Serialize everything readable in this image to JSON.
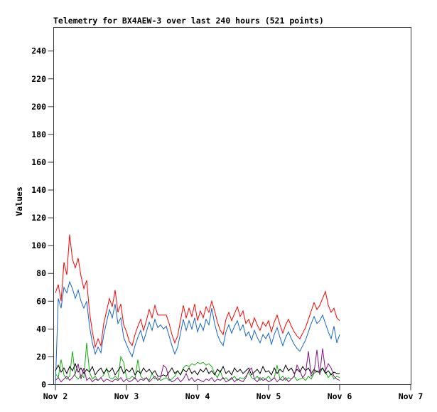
{
  "window": {
    "background": "#ffffff",
    "border_color": "#333333",
    "text_color": "#000000"
  },
  "chart_data": {
    "type": "line",
    "title": "Telemetry for BX4AEW-3 over last 240 hours (521 points)",
    "ylabel": "Values",
    "xlabel": "",
    "station": "BX4AEW-3",
    "window_hours": 240,
    "points_count": 521,
    "grid": false,
    "legend_position": "none",
    "ylim": [
      0,
      257
    ],
    "y_ticks": [
      0,
      20,
      40,
      60,
      80,
      100,
      120,
      140,
      160,
      180,
      200,
      220,
      240
    ],
    "x_ticks": [
      {
        "day": 0,
        "label": "Nov 2"
      },
      {
        "day": 1,
        "label": "Nov 3"
      },
      {
        "day": 2,
        "label": "Nov 4"
      },
      {
        "day": 3,
        "label": "Nov 5"
      },
      {
        "day": 4,
        "label": "Nov 6"
      },
      {
        "day": 5,
        "label": "Nov 7"
      }
    ],
    "x_days_range": [
      0,
      5
    ],
    "data_days_span": [
      0,
      4
    ],
    "series": [
      {
        "name": "series-red",
        "color": "#ff0000",
        "x_start": 0,
        "x_step": 0.04,
        "values": [
          66,
          72,
          60,
          88,
          79,
          108,
          90,
          84,
          91,
          78,
          69,
          75,
          52,
          38,
          27,
          33,
          28,
          44,
          53,
          62,
          56,
          68,
          52,
          58,
          43,
          38,
          31,
          28,
          36,
          42,
          47,
          39,
          46,
          54,
          48,
          57,
          50,
          50,
          50,
          50,
          44,
          36,
          30,
          35,
          46,
          57,
          48,
          55,
          49,
          58,
          46,
          53,
          48,
          56,
          52,
          60,
          53,
          45,
          39,
          36,
          47,
          52,
          46,
          51,
          56,
          49,
          53,
          44,
          47,
          41,
          48,
          43,
          39,
          45,
          42,
          46,
          38,
          45,
          50,
          43,
          37,
          43,
          47,
          42,
          38,
          35,
          33,
          37,
          41,
          47,
          53,
          59,
          54,
          57,
          62,
          67,
          57,
          52,
          55,
          48,
          46
        ]
      },
      {
        "name": "series-blue",
        "color": "#1565c8",
        "x_start": 0,
        "x_step": 0.04,
        "values": [
          0,
          62,
          55,
          70,
          66,
          74,
          69,
          62,
          68,
          60,
          55,
          60,
          42,
          30,
          22,
          27,
          23,
          36,
          45,
          54,
          48,
          58,
          44,
          48,
          34,
          29,
          24,
          20,
          28,
          34,
          39,
          31,
          38,
          45,
          39,
          47,
          41,
          43,
          40,
          42,
          35,
          28,
          22,
          27,
          37,
          47,
          39,
          46,
          40,
          48,
          38,
          44,
          39,
          47,
          43,
          55,
          44,
          36,
          31,
          28,
          38,
          43,
          37,
          42,
          46,
          39,
          43,
          35,
          38,
          32,
          39,
          34,
          30,
          36,
          33,
          37,
          29,
          36,
          41,
          34,
          28,
          34,
          38,
          33,
          29,
          26,
          24,
          28,
          32,
          38,
          44,
          49,
          44,
          46,
          50,
          44,
          38,
          33,
          42,
          30,
          36
        ]
      },
      {
        "name": "series-green",
        "color": "#12ad12",
        "x_start": 0,
        "x_step": 0.04,
        "values": [
          8,
          5,
          18,
          7,
          4,
          6,
          24,
          6,
          4,
          7,
          5,
          30,
          9,
          4,
          6,
          3,
          5,
          7,
          12,
          5,
          4,
          6,
          4,
          20,
          16,
          5,
          4,
          6,
          4,
          18,
          6,
          4,
          5,
          3,
          8,
          4,
          5,
          3,
          4,
          5,
          3,
          4,
          6,
          10,
          7,
          12,
          14,
          13,
          15,
          14,
          16,
          15,
          16,
          14,
          15,
          13,
          8,
          5,
          10,
          4,
          5,
          3,
          4,
          6,
          3,
          5,
          4,
          6,
          9,
          5,
          4,
          6,
          3,
          5,
          4,
          6,
          3,
          5,
          14,
          4,
          6,
          3,
          5,
          4,
          6,
          3,
          4,
          5,
          3,
          6,
          4,
          8,
          10,
          8,
          12,
          9,
          5,
          8,
          4,
          6,
          5
        ]
      },
      {
        "name": "series-black",
        "color": "#000000",
        "x_start": 0,
        "x_step": 0.04,
        "values": [
          10,
          14,
          9,
          12,
          8,
          13,
          10,
          15,
          9,
          12,
          8,
          11,
          9,
          13,
          7,
          10,
          12,
          8,
          11,
          9,
          12,
          7,
          10,
          13,
          8,
          11,
          9,
          12,
          7,
          10,
          8,
          12,
          9,
          11,
          8,
          10,
          6,
          6,
          7,
          6,
          9,
          12,
          8,
          10,
          7,
          11,
          9,
          12,
          8,
          10,
          7,
          11,
          9,
          12,
          8,
          10,
          7,
          11,
          9,
          13,
          8,
          10,
          7,
          12,
          9,
          11,
          8,
          10,
          12,
          7,
          9,
          11,
          8,
          13,
          9,
          10,
          7,
          12,
          8,
          11,
          9,
          14,
          10,
          12,
          8,
          11,
          9,
          13,
          10,
          12,
          8,
          11,
          9,
          10,
          12,
          8,
          10,
          7,
          9,
          8,
          8
        ]
      },
      {
        "name": "series-purple",
        "color": "#821482",
        "x_start": 0,
        "x_step": 0.04,
        "values": [
          3,
          5,
          2,
          4,
          6,
          3,
          5,
          8,
          15,
          4,
          12,
          3,
          5,
          2,
          4,
          3,
          5,
          2,
          4,
          3,
          2,
          4,
          3,
          5,
          2,
          4,
          2,
          3,
          5,
          2,
          4,
          3,
          5,
          2,
          4,
          6,
          3,
          5,
          14,
          12,
          4,
          2,
          3,
          5,
          2,
          4,
          8,
          3,
          5,
          2,
          4,
          3,
          2,
          4,
          3,
          5,
          2,
          4,
          3,
          5,
          2,
          3,
          5,
          2,
          4,
          3,
          2,
          5,
          10,
          12,
          4,
          2,
          5,
          3,
          4,
          2,
          3,
          5,
          2,
          4,
          3,
          5,
          2,
          4,
          6,
          14,
          10,
          5,
          8,
          24,
          6,
          9,
          25,
          7,
          26,
          10,
          15,
          12,
          6,
          4,
          3
        ]
      }
    ]
  }
}
